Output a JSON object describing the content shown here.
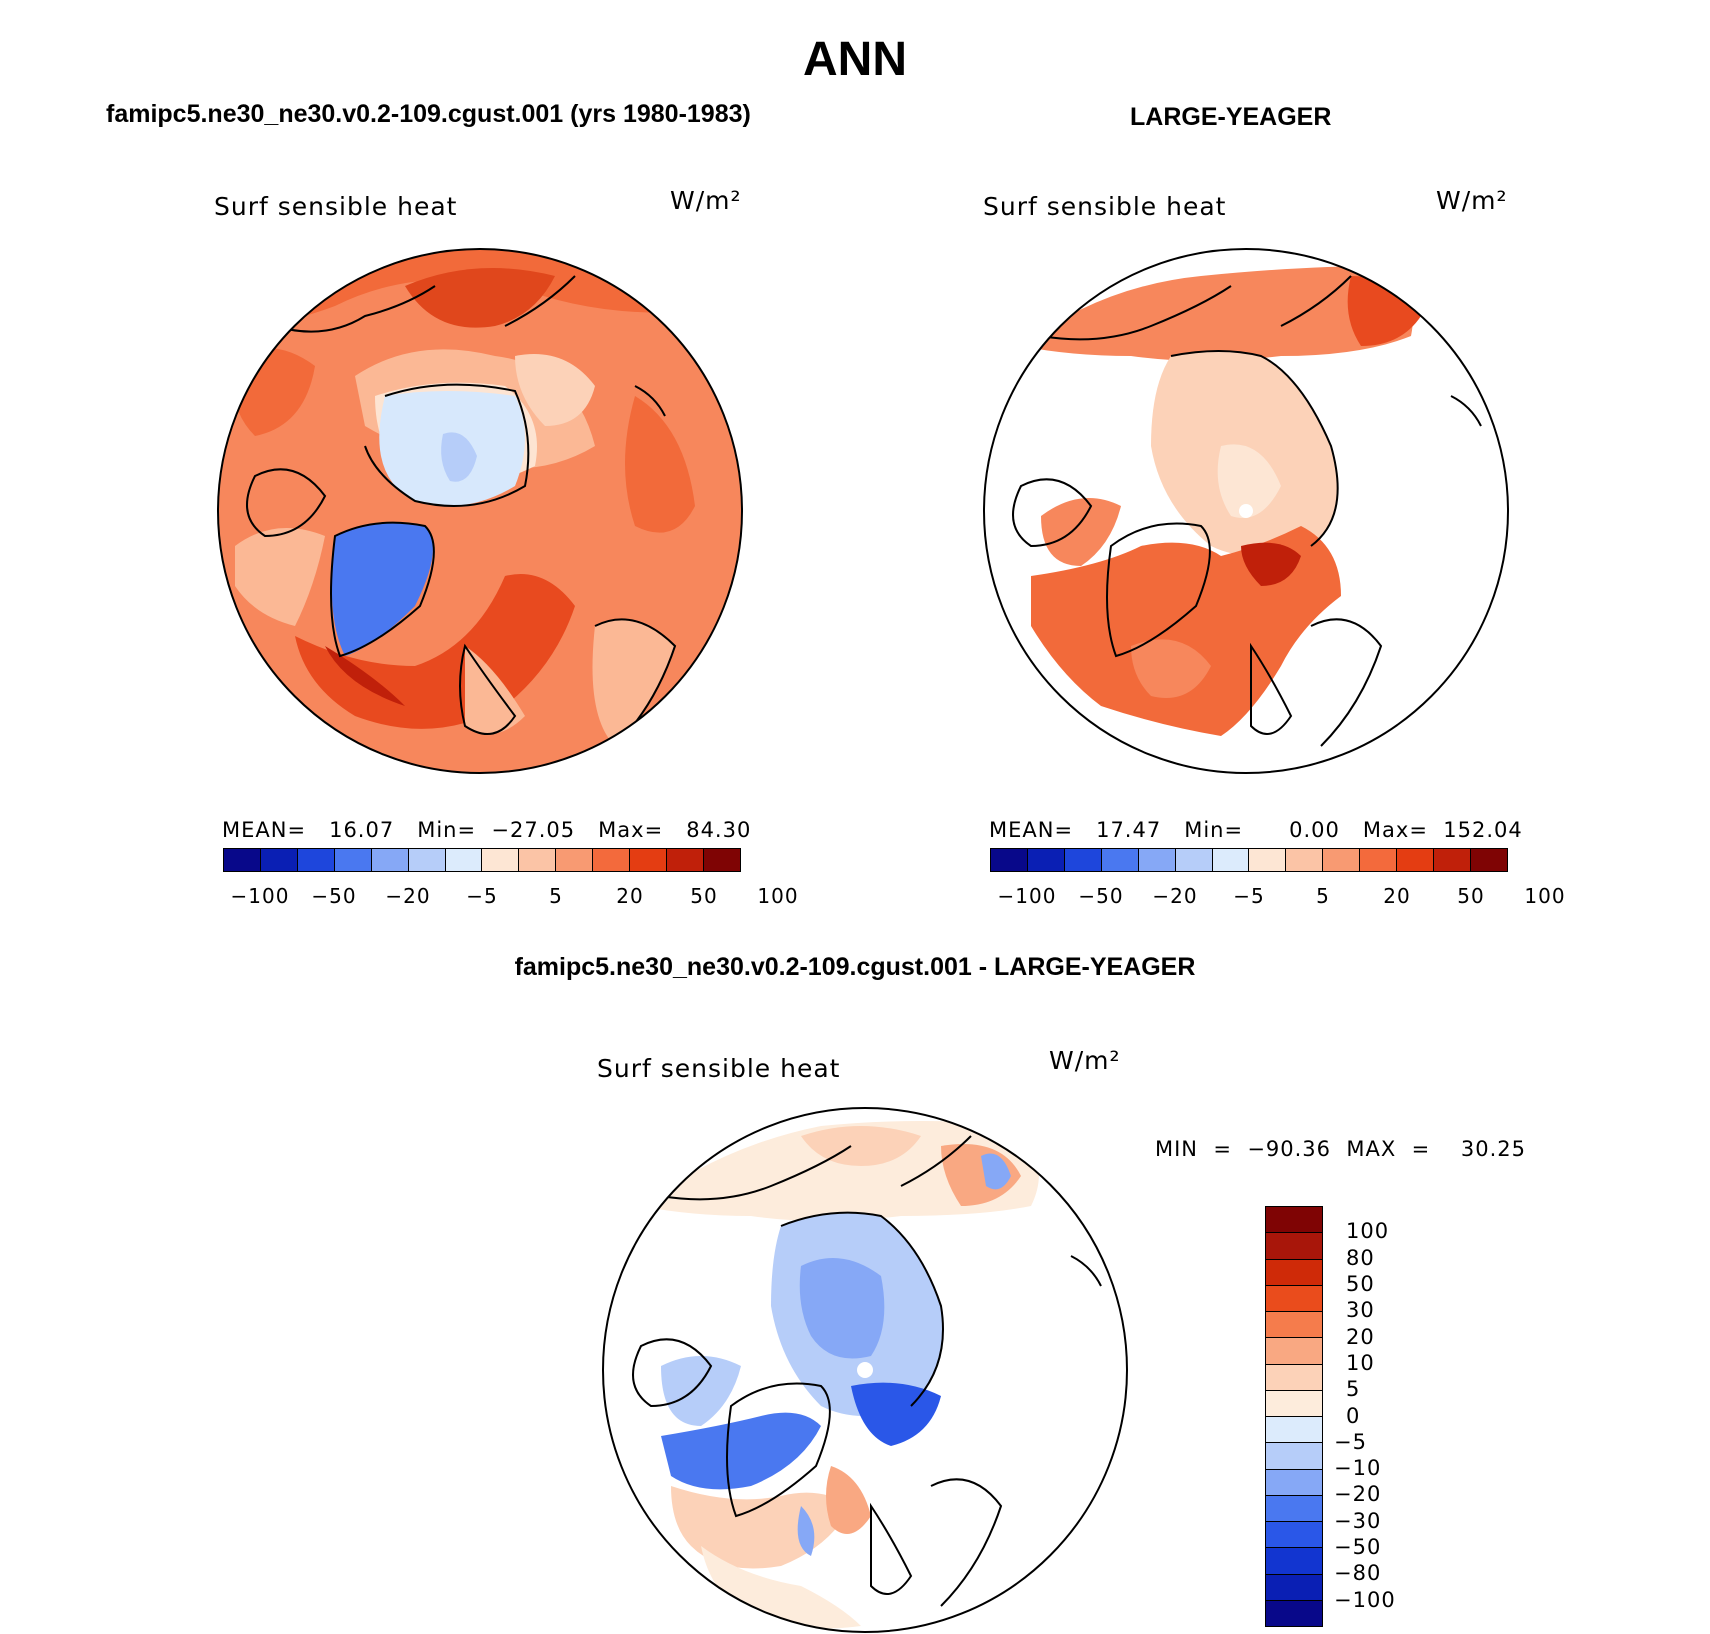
{
  "figure": {
    "main_title": "ANN",
    "left_title": "famipc5.ne30_ne30.v0.2-109.cgust.001 (yrs 1980-1983)",
    "right_title": "LARGE-YEAGER",
    "diff_title": "famipc5.ne30_ne30.v0.2-109.cgust.001 - LARGE-YEAGER"
  },
  "panels": {
    "left": {
      "variable": "Surf sensible heat",
      "units": "W/m²",
      "stats": "MEAN=   16.07   Min=  −27.05   Max=   84.30"
    },
    "right": {
      "variable": "Surf sensible heat",
      "units": "W/m²",
      "stats": "MEAN=   17.47   Min=      0.00   Max=  152.04"
    },
    "diff": {
      "variable": "Surf sensible heat",
      "units": "W/m²",
      "stats": "MIN  =  −90.36  MAX  =    30.25"
    }
  },
  "colorbars": {
    "horizontal_labels": [
      "−100",
      "−50",
      "−20",
      "−5",
      "5",
      "20",
      "50",
      "100"
    ],
    "horizontal_colors": [
      "#08088a",
      "#0a1fb4",
      "#1e46dc",
      "#4a78f0",
      "#86a8f6",
      "#b6cdf9",
      "#dcebfc",
      "#fde6d4",
      "#fbc4a6",
      "#f89a72",
      "#f36a3c",
      "#e43d12",
      "#c0200a",
      "#7f0404"
    ],
    "vertical_labels": [
      "−100",
      "−80",
      "−50",
      "−30",
      "−20",
      "−10",
      "−5",
      "0",
      "5",
      "10",
      "20",
      "30",
      "50",
      "80",
      "100"
    ],
    "vertical_colors": [
      "#08088a",
      "#0a1fb4",
      "#1235d0",
      "#2a57e8",
      "#4a78f0",
      "#86a8f6",
      "#b6cdf9",
      "#dcebfc",
      "#fdecdc",
      "#fcd2b8",
      "#f9a882",
      "#f57c4c",
      "#ea4c1c",
      "#cf2a08",
      "#a8160a",
      "#7f0404"
    ]
  }
}
